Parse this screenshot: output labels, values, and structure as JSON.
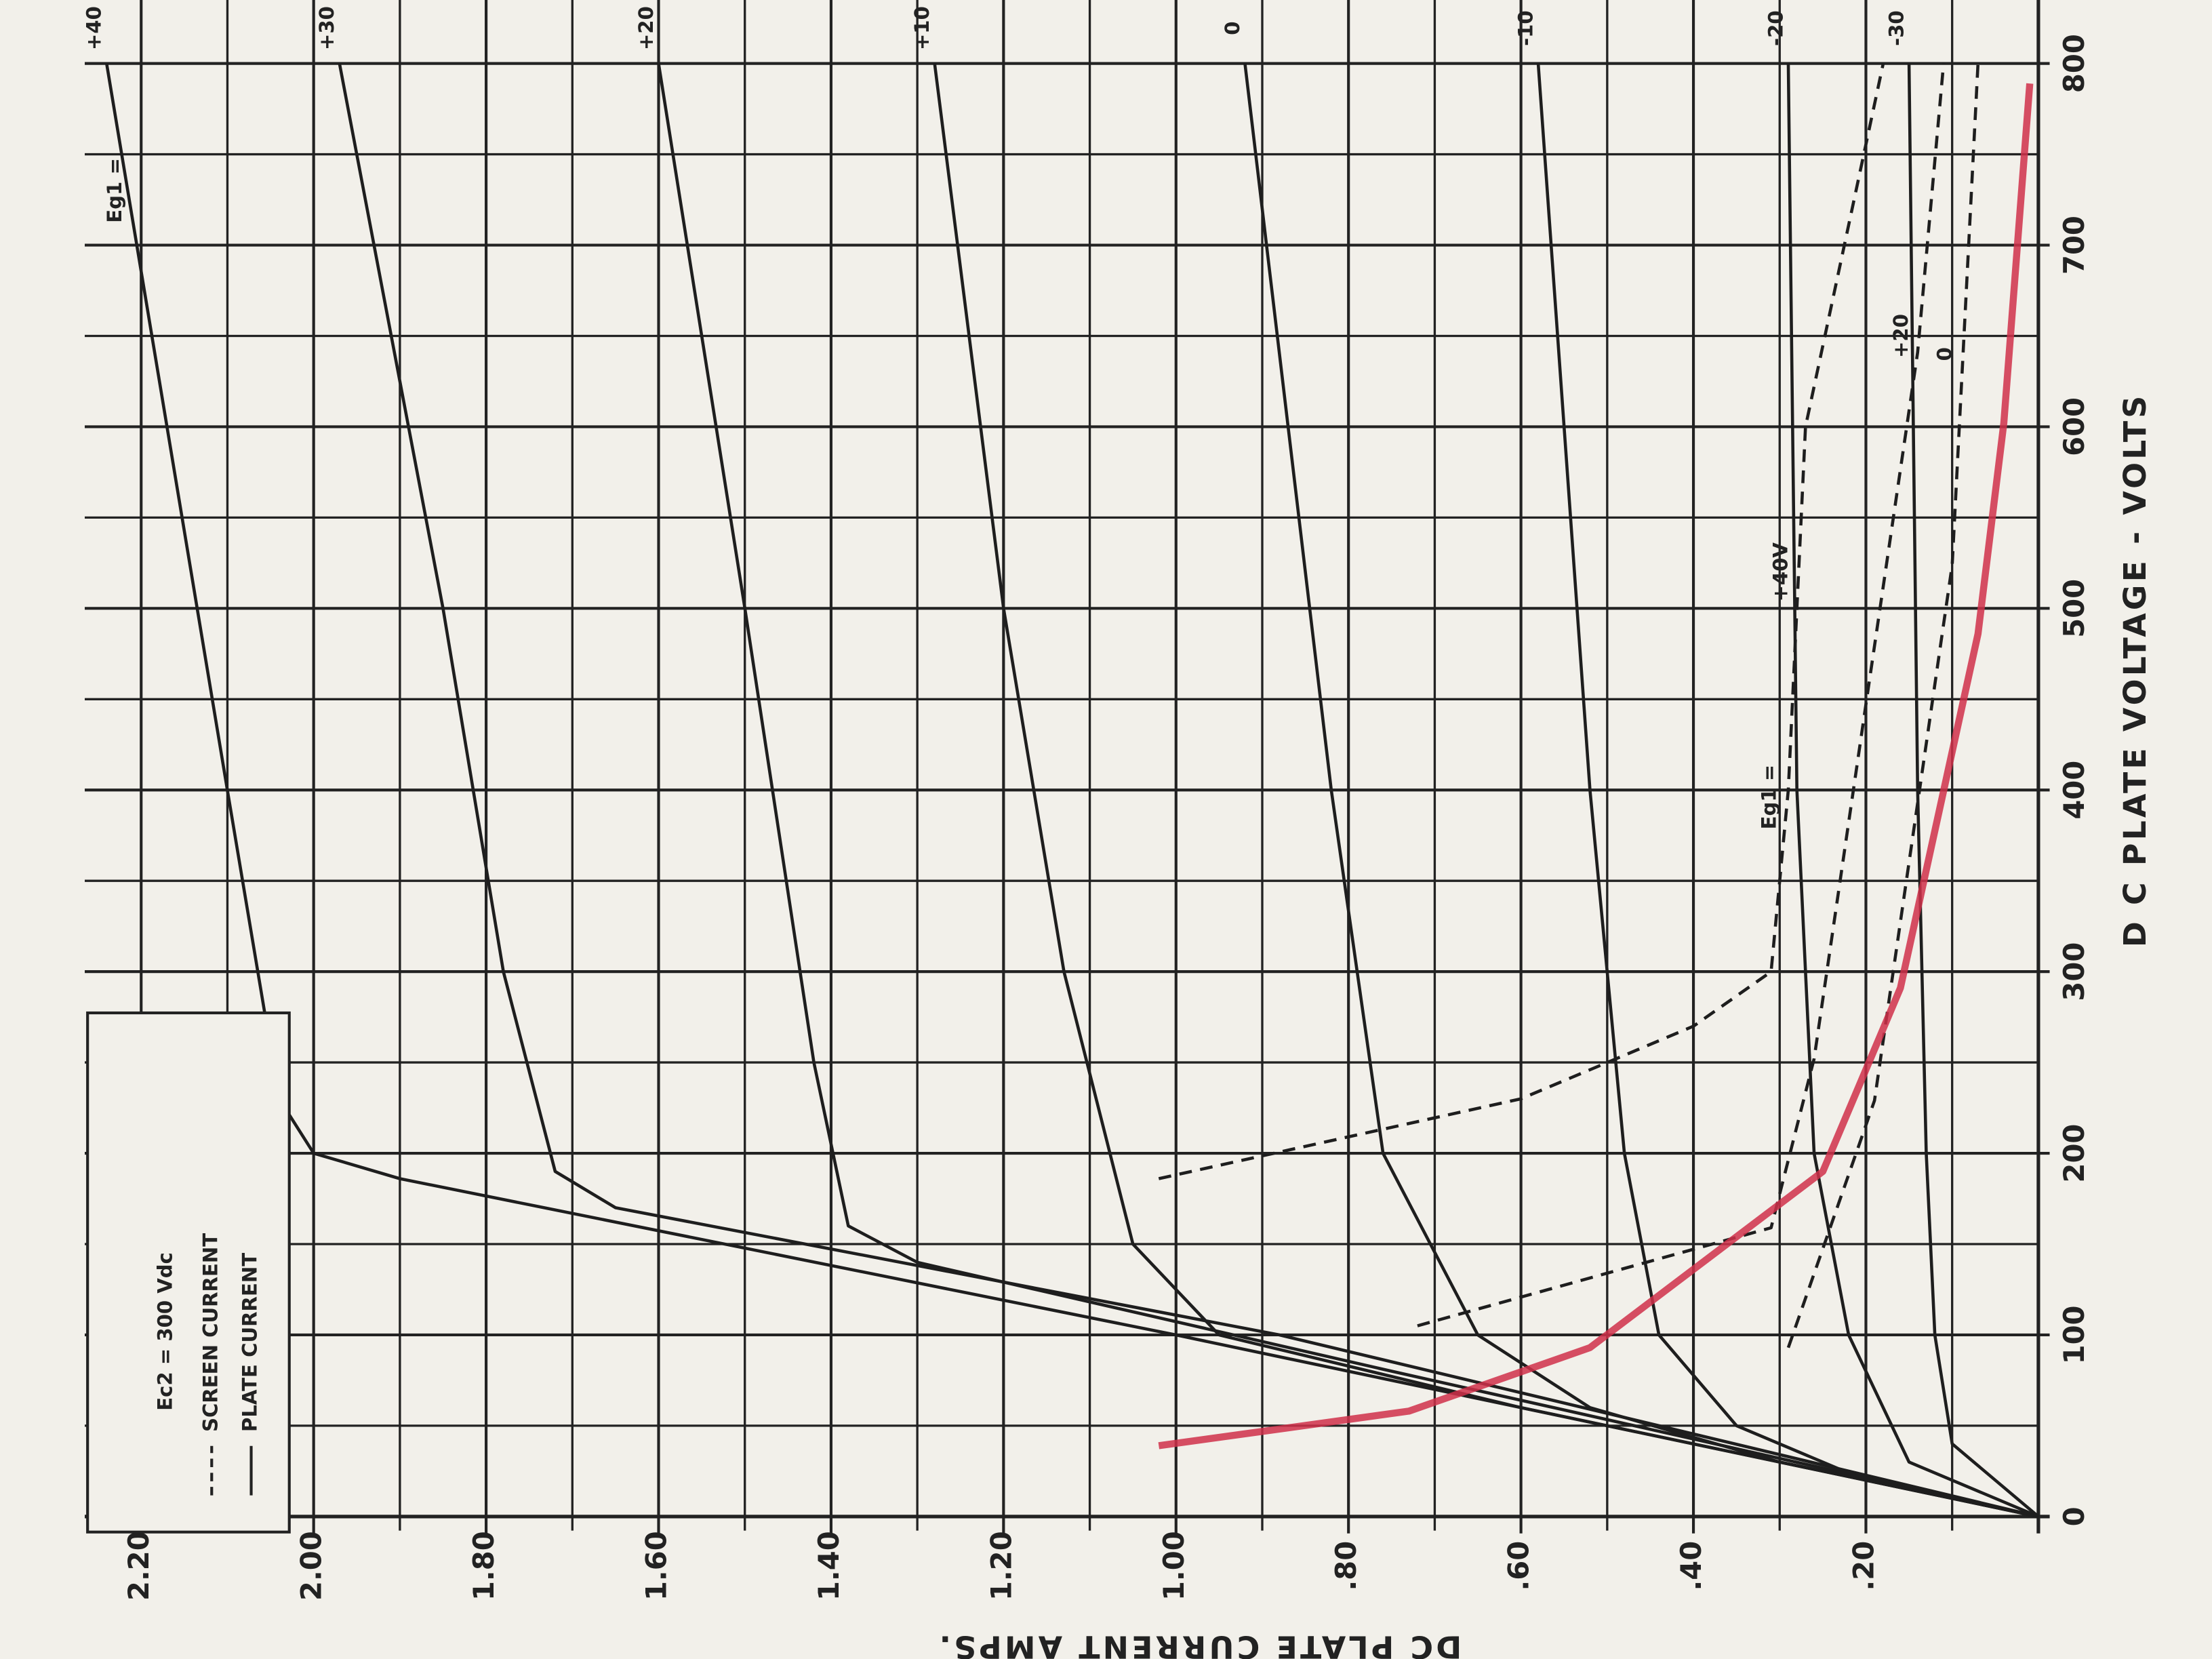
{
  "chart_data": {
    "type": "line",
    "x_label": "D C PLATE VOLTAGE - VOLTS",
    "y_label": "DC PLATE CURRENT AMPS.",
    "xlim": [
      0,
      800
    ],
    "ylim": [
      0,
      2.2
    ],
    "xticks": [
      0,
      100,
      200,
      300,
      400,
      500,
      600,
      700,
      800
    ],
    "yticks": [
      {
        "value": 0.2,
        "label": ".20"
      },
      {
        "value": 0.4,
        "label": ".40"
      },
      {
        "value": 0.6,
        "label": ".60"
      },
      {
        "value": 0.8,
        "label": ".80"
      },
      {
        "value": 1.0,
        "label": "1.00"
      },
      {
        "value": 1.2,
        "label": "1.20"
      },
      {
        "value": 1.4,
        "label": "1.40"
      },
      {
        "value": 1.6,
        "label": "1.60"
      },
      {
        "value": 1.8,
        "label": "1.80"
      },
      {
        "value": 2.0,
        "label": "2.00"
      },
      {
        "value": 2.2,
        "label": "2.20"
      }
    ],
    "minor_xticks": [
      50,
      150,
      250,
      350,
      450,
      550,
      650,
      750
    ],
    "minor_yticks": [
      0.1,
      0.3,
      0.5,
      0.7,
      0.9,
      1.1,
      1.3,
      1.5,
      1.7,
      1.9,
      2.1
    ],
    "grid": true,
    "annotations": [
      "Eg1 =",
      "Eg1 ="
    ],
    "legend": {
      "title": "Ec2 = 300 Vdc",
      "items": [
        {
          "label": "SCREEN CURRENT",
          "style": "dashed"
        },
        {
          "label": "PLATE CURRENT",
          "style": "solid"
        }
      ]
    },
    "series": [
      {
        "name": "+40",
        "color": "#1e1e1e",
        "style": "solid",
        "x": [
          0,
          100,
          186,
          200,
          230,
          400,
          600,
          800
        ],
        "values": [
          0,
          1.0,
          1.9,
          2.0,
          2.04,
          2.1,
          2.17,
          2.24
        ]
      },
      {
        "name": "+30",
        "color": "#1e1e1e",
        "style": "solid",
        "x": [
          0,
          100,
          170,
          190,
          300,
          500,
          800
        ],
        "values": [
          0,
          0.88,
          1.65,
          1.72,
          1.78,
          1.85,
          1.97
        ]
      },
      {
        "name": "+20",
        "color": "#1e1e1e",
        "style": "solid",
        "x": [
          0,
          80,
          140,
          160,
          250,
          500,
          800
        ],
        "values": [
          0,
          0.75,
          1.3,
          1.38,
          1.42,
          1.5,
          1.6
        ]
      },
      {
        "name": "+10",
        "color": "#1e1e1e",
        "style": "solid",
        "x": [
          0,
          60,
          100,
          150,
          300,
          500,
          800
        ],
        "values": [
          0,
          0.6,
          0.95,
          1.05,
          1.13,
          1.2,
          1.28
        ]
      },
      {
        "name": "0",
        "color": "#1e1e1e",
        "style": "solid",
        "x": [
          0,
          30,
          60,
          100,
          200,
          400,
          800
        ],
        "values": [
          0,
          0.3,
          0.52,
          0.65,
          0.76,
          0.82,
          0.92
        ]
      },
      {
        "name": "-10",
        "color": "#1e1e1e",
        "style": "solid",
        "x": [
          0,
          20,
          50,
          100,
          200,
          400,
          800
        ],
        "values": [
          0,
          0.2,
          0.35,
          0.44,
          0.48,
          0.52,
          0.58
        ]
      },
      {
        "name": "-20",
        "color": "#1e1e1e",
        "style": "solid",
        "x": [
          0,
          30,
          100,
          200,
          400,
          800
        ],
        "values": [
          0,
          0.15,
          0.22,
          0.26,
          0.28,
          0.29
        ]
      },
      {
        "name": "-30",
        "color": "#1e1e1e",
        "style": "solid",
        "x": [
          0,
          40,
          100,
          200,
          400,
          800
        ],
        "values": [
          0,
          0.1,
          0.12,
          0.13,
          0.14,
          0.15
        ]
      },
      {
        "name": "+40V",
        "color": "#1e1e1e",
        "style": "dashed",
        "x": [
          186,
          230,
          270,
          300,
          400,
          600,
          800
        ],
        "values": [
          1.02,
          0.6,
          0.4,
          0.31,
          0.29,
          0.27,
          0.18
        ]
      },
      {
        "name": "+20",
        "color": "#1e1e1e",
        "style": "dashed",
        "x": [
          105,
          159,
          252,
          447,
          641,
          800
        ],
        "values": [
          0.72,
          0.31,
          0.26,
          0.2,
          0.14,
          0.11
        ]
      },
      {
        "name": "0",
        "color": "#1e1e1e",
        "style": "dashed",
        "x": [
          93,
          229,
          524,
          800
        ],
        "values": [
          0.29,
          0.19,
          0.1,
          0.07
        ]
      },
      {
        "color": "#d0304a",
        "style": "hand",
        "x": [
          39,
          58,
          93,
          190,
          291,
          486,
          602,
          789
        ],
        "values": [
          1.02,
          0.73,
          0.52,
          0.25,
          0.16,
          0.07,
          0.04,
          0.01
        ]
      }
    ]
  }
}
